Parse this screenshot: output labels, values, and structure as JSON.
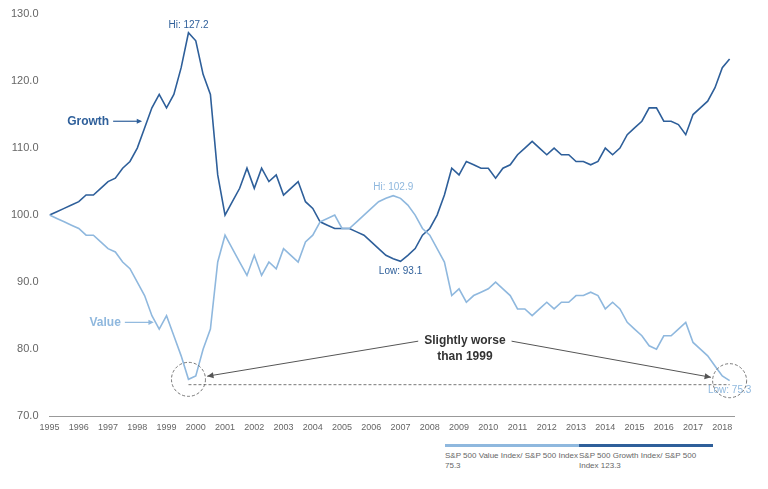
{
  "chart_data": {
    "type": "line",
    "x": [
      1995,
      1995.25,
      1995.5,
      1995.75,
      1996,
      1996.25,
      1996.5,
      1996.75,
      1997,
      1997.25,
      1997.5,
      1997.75,
      1998,
      1998.25,
      1998.5,
      1998.75,
      1999,
      1999.25,
      1999.5,
      1999.75,
      2000,
      2000.25,
      2000.5,
      2000.75,
      2001,
      2001.25,
      2001.5,
      2001.75,
      2002,
      2002.25,
      2002.5,
      2002.75,
      2003,
      2003.25,
      2003.5,
      2003.75,
      2004,
      2004.25,
      2004.5,
      2004.75,
      2005,
      2005.25,
      2005.5,
      2005.75,
      2006,
      2006.25,
      2006.5,
      2006.75,
      2007,
      2007.25,
      2007.5,
      2007.75,
      2008,
      2008.25,
      2008.5,
      2008.75,
      2009,
      2009.25,
      2009.5,
      2009.75,
      2010,
      2010.25,
      2010.5,
      2010.75,
      2011,
      2011.25,
      2011.5,
      2011.75,
      2012,
      2012.25,
      2012.5,
      2012.75,
      2013,
      2013.25,
      2013.5,
      2013.75,
      2014,
      2014.25,
      2014.5,
      2014.75,
      2015,
      2015.25,
      2015.5,
      2015.75,
      2016,
      2016.25,
      2016.5,
      2016.75,
      2017,
      2017.25,
      2017.5,
      2017.75,
      2018,
      2018.25
    ],
    "series": [
      {
        "name": "S&P 500 Value Index/ S&P 500 Index 75.3",
        "color": "#8fb8de",
        "values": [
          100,
          99.5,
          99,
          98.5,
          98,
          97,
          97,
          96,
          95,
          94.5,
          93,
          92,
          90,
          88,
          85,
          83,
          85,
          82,
          79,
          75.5,
          76,
          80,
          83,
          93,
          97,
          95,
          93,
          91,
          94,
          91,
          93,
          92,
          95,
          94,
          93,
          96,
          97,
          99,
          99.5,
          100,
          98,
          98,
          99,
          100,
          101,
          102,
          102.5,
          102.9,
          102.5,
          101.5,
          100,
          98,
          97,
          95,
          93,
          88,
          89,
          87,
          88,
          88.5,
          89,
          90,
          89,
          88,
          86,
          86,
          85,
          86,
          87,
          86,
          87,
          87,
          88,
          88,
          88.5,
          88,
          86,
          87,
          86,
          84,
          83,
          82,
          80.5,
          80,
          82,
          82,
          83,
          84,
          81,
          80,
          79,
          77.5,
          76,
          75.3
        ]
      },
      {
        "name": "S&P 500 Growth Index/ S&P 500 Index 123.3",
        "color": "#2e5f9a",
        "values": [
          100,
          100.5,
          101,
          101.5,
          102,
          103,
          103,
          104,
          105,
          105.5,
          107,
          108,
          110,
          113,
          116,
          118,
          116,
          118,
          122,
          127.2,
          126,
          121,
          118,
          106,
          100,
          102,
          104,
          107,
          104,
          107,
          105,
          106,
          103,
          104,
          105,
          102,
          101,
          99,
          98.5,
          98,
          98,
          98,
          97.5,
          97,
          96,
          95,
          94,
          93.5,
          93.1,
          94,
          95,
          97,
          98,
          100,
          103,
          107,
          106,
          108,
          107.5,
          107,
          107,
          105.5,
          107,
          107.5,
          109,
          110,
          111,
          110,
          109,
          110,
          109,
          109,
          108,
          108,
          107.5,
          108,
          110,
          109,
          110,
          112,
          113,
          114,
          116,
          116,
          114,
          114,
          113.5,
          112,
          115,
          116,
          117,
          119,
          122,
          123.3
        ]
      }
    ],
    "xlim": [
      1995,
      2018.4
    ],
    "xticks": [
      1995,
      1996,
      1997,
      1998,
      1999,
      2000,
      2001,
      2002,
      2003,
      2004,
      2005,
      2006,
      2007,
      2008,
      2009,
      2010,
      2011,
      2012,
      2013,
      2014,
      2015,
      2016,
      2017,
      2018
    ],
    "ylim": [
      70,
      130
    ],
    "yticks": [
      {
        "value": 70,
        "label": "70.0"
      },
      {
        "value": 80,
        "label": "80.0"
      },
      {
        "value": 90,
        "label": "90.0"
      },
      {
        "value": 100,
        "label": "100.0"
      },
      {
        "value": 110,
        "label": "110.0"
      },
      {
        "value": 120,
        "label": "120.0"
      },
      {
        "value": 130,
        "label": "130.0"
      }
    ],
    "grid": false,
    "annotations": [
      {
        "text": "Hi: 127.2",
        "x": 1999.75,
        "y": 127.2,
        "color": "#2e5f9a",
        "position": "above"
      },
      {
        "text": "Hi: 102.9",
        "x": 2006.75,
        "y": 102.9,
        "color": "#8fb8de",
        "position": "above"
      },
      {
        "text": "Low: 93.1",
        "x": 2007,
        "y": 93.1,
        "color": "#2e5f9a",
        "position": "below"
      },
      {
        "text": "Low: 75.3",
        "x": 2018.25,
        "y": 75.3,
        "color": "#8fb8de",
        "position": "below"
      },
      {
        "text": "Growth",
        "x": 1998.2,
        "y": 114,
        "color": "#2e5f9a",
        "position": "arrow"
      },
      {
        "text": "Value",
        "x": 1998.6,
        "y": 84,
        "color": "#8fb8de",
        "position": "arrow"
      },
      {
        "text": "Slightly worse than 1999",
        "x": 2009.2,
        "y": 80,
        "color": "#444444",
        "position": "callout",
        "points": [
          [
            1999.75,
            75.5
          ],
          [
            2018.25,
            75.3
          ]
        ]
      }
    ]
  }
}
